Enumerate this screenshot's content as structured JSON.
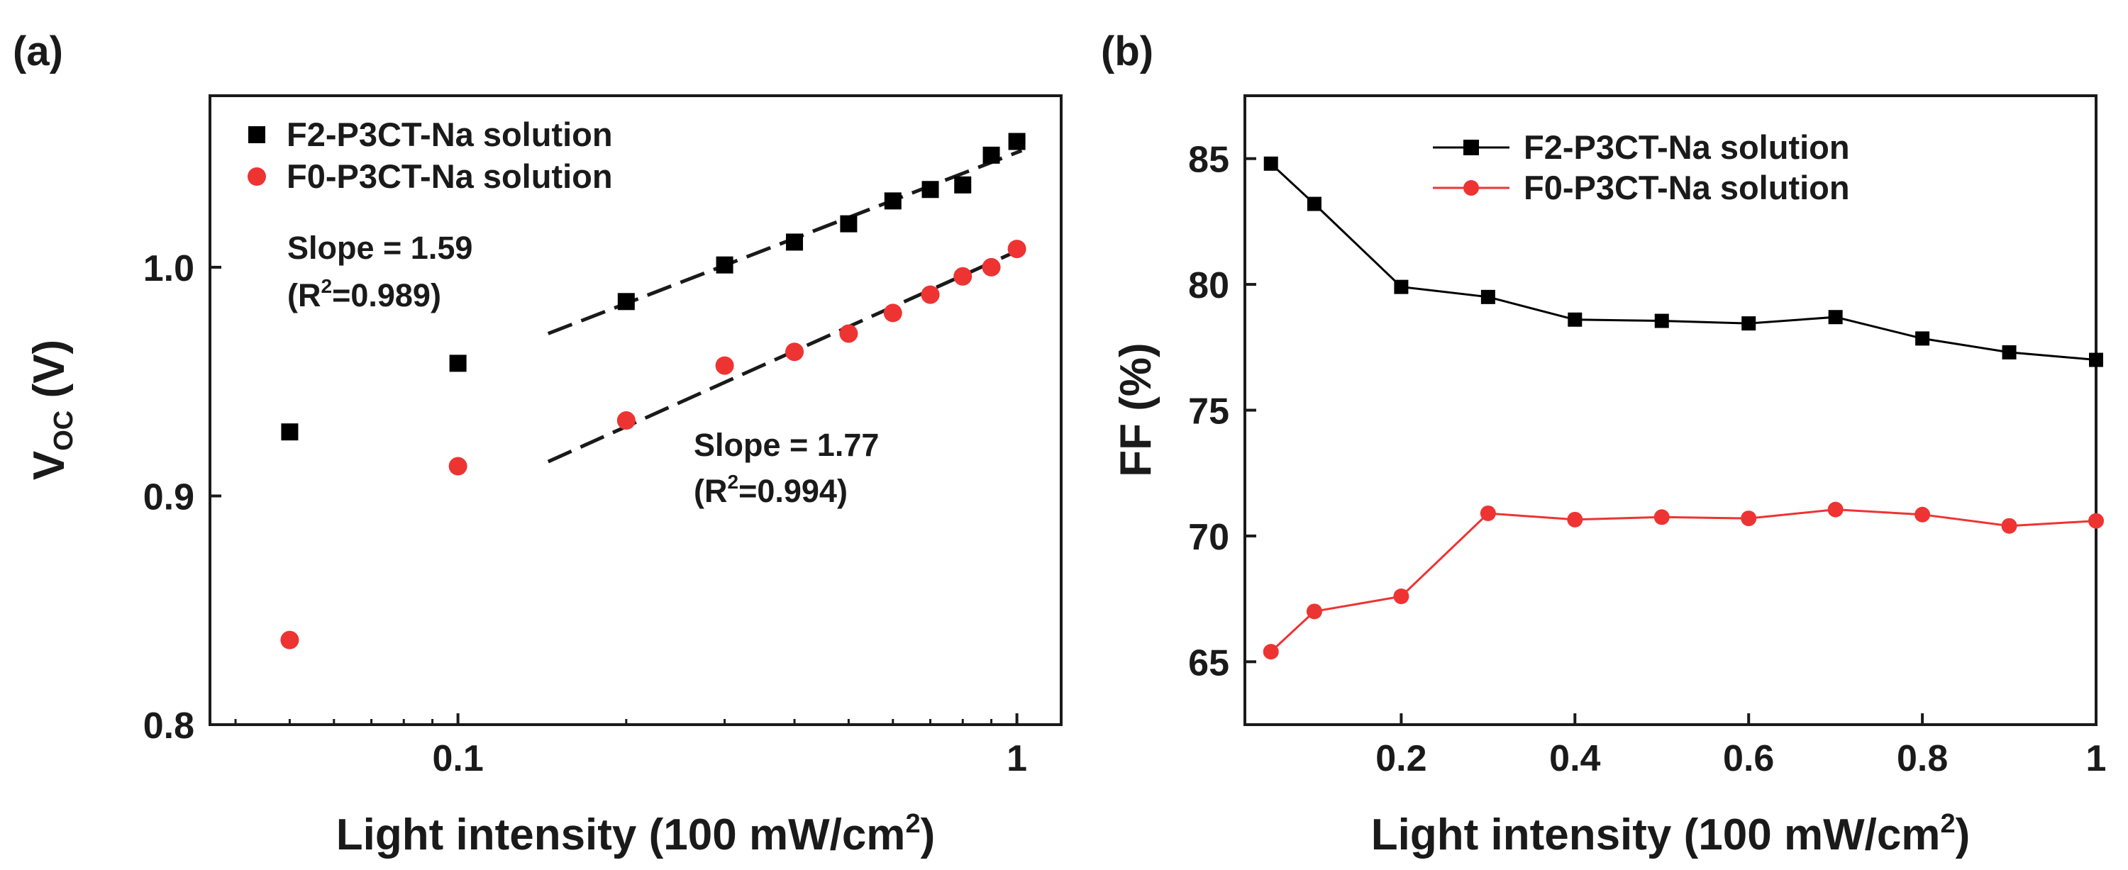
{
  "chart_data": [
    {
      "panel_label": "(a)",
      "type": "scatter",
      "xscale": "log",
      "xlabel": "Light intensity (100 mW/cm",
      "xlabel_sup": "2",
      "xlabel_end": ")",
      "ylabel_main": "V",
      "ylabel_sub": "OC",
      "ylabel_end": " (V)",
      "xlim": [
        0.036,
        1.2
      ],
      "ylim": [
        0.8,
        1.075
      ],
      "xticks": [
        {
          "value": 0.1,
          "label": "0.1"
        },
        {
          "value": 1,
          "label": "1"
        }
      ],
      "yticks": [
        {
          "value": 0.8,
          "label": "0.8"
        },
        {
          "value": 0.9,
          "label": "0.9"
        },
        {
          "value": 1.0,
          "label": "1.0"
        }
      ],
      "series": [
        {
          "name": "F2-P3CT-Na solution",
          "color": "#000000",
          "marker": "square",
          "x": [
            0.05,
            0.1,
            0.2,
            0.3,
            0.4,
            0.5,
            0.6,
            0.7,
            0.8,
            0.9,
            1.0
          ],
          "y": [
            0.928,
            0.958,
            0.985,
            1.001,
            1.011,
            1.019,
            1.029,
            1.034,
            1.036,
            1.049,
            1.055
          ],
          "fit": {
            "x": [
              0.145,
              1.02
            ],
            "y": [
              0.971,
              1.051
            ]
          }
        },
        {
          "name": "F0-P3CT-Na solution",
          "color": "#ee3333",
          "marker": "circle",
          "x": [
            0.05,
            0.1,
            0.2,
            0.3,
            0.4,
            0.5,
            0.6,
            0.7,
            0.8,
            0.9,
            1.0
          ],
          "y": [
            0.837,
            0.913,
            0.933,
            0.957,
            0.963,
            0.971,
            0.98,
            0.988,
            0.996,
            1.0,
            1.008
          ],
          "fit": {
            "x": [
              0.145,
              1.02
            ],
            "y": [
              0.915,
              1.008
            ]
          }
        }
      ],
      "annotations": [
        {
          "line1": "Slope = 1.59",
          "line2_pre": "(R",
          "line2_sup": "2",
          "line2_post": "=0.989)"
        },
        {
          "line1": "Slope = 1.77",
          "line2_pre": "(R",
          "line2_sup": "2",
          "line2_post": "=0.994)"
        }
      ],
      "legend_position": "top-left"
    },
    {
      "panel_label": "(b)",
      "type": "line",
      "xlabel": "Light intensity (100 mW/cm",
      "xlabel_sup": "2",
      "xlabel_end": ")",
      "ylabel": "FF (%)",
      "xlim": [
        0.02,
        1.0
      ],
      "ylim": [
        62.5,
        87.5
      ],
      "xticks": [
        {
          "value": 0.2,
          "label": "0.2"
        },
        {
          "value": 0.4,
          "label": "0.4"
        },
        {
          "value": 0.6,
          "label": "0.6"
        },
        {
          "value": 0.8,
          "label": "0.8"
        },
        {
          "value": 1.0,
          "label": "1"
        }
      ],
      "yticks": [
        {
          "value": 65,
          "label": "65"
        },
        {
          "value": 70,
          "label": "70"
        },
        {
          "value": 75,
          "label": "75"
        },
        {
          "value": 80,
          "label": "80"
        },
        {
          "value": 85,
          "label": "85"
        }
      ],
      "series": [
        {
          "name": "F2-P3CT-Na solution",
          "color": "#000000",
          "marker": "square",
          "x": [
            0.05,
            0.1,
            0.2,
            0.3,
            0.4,
            0.5,
            0.6,
            0.7,
            0.8,
            0.9,
            1.0
          ],
          "y": [
            84.8,
            83.2,
            79.9,
            79.5,
            78.6,
            78.55,
            78.45,
            78.7,
            77.85,
            77.3,
            77.0
          ]
        },
        {
          "name": "F0-P3CT-Na solution",
          "color": "#ee3333",
          "marker": "circle",
          "x": [
            0.05,
            0.1,
            0.2,
            0.3,
            0.4,
            0.5,
            0.6,
            0.7,
            0.8,
            0.9,
            1.0
          ],
          "y": [
            65.4,
            67.0,
            67.6,
            70.9,
            70.65,
            70.75,
            70.7,
            71.05,
            70.85,
            70.4,
            70.6
          ]
        }
      ],
      "legend_position": "top-right"
    }
  ]
}
